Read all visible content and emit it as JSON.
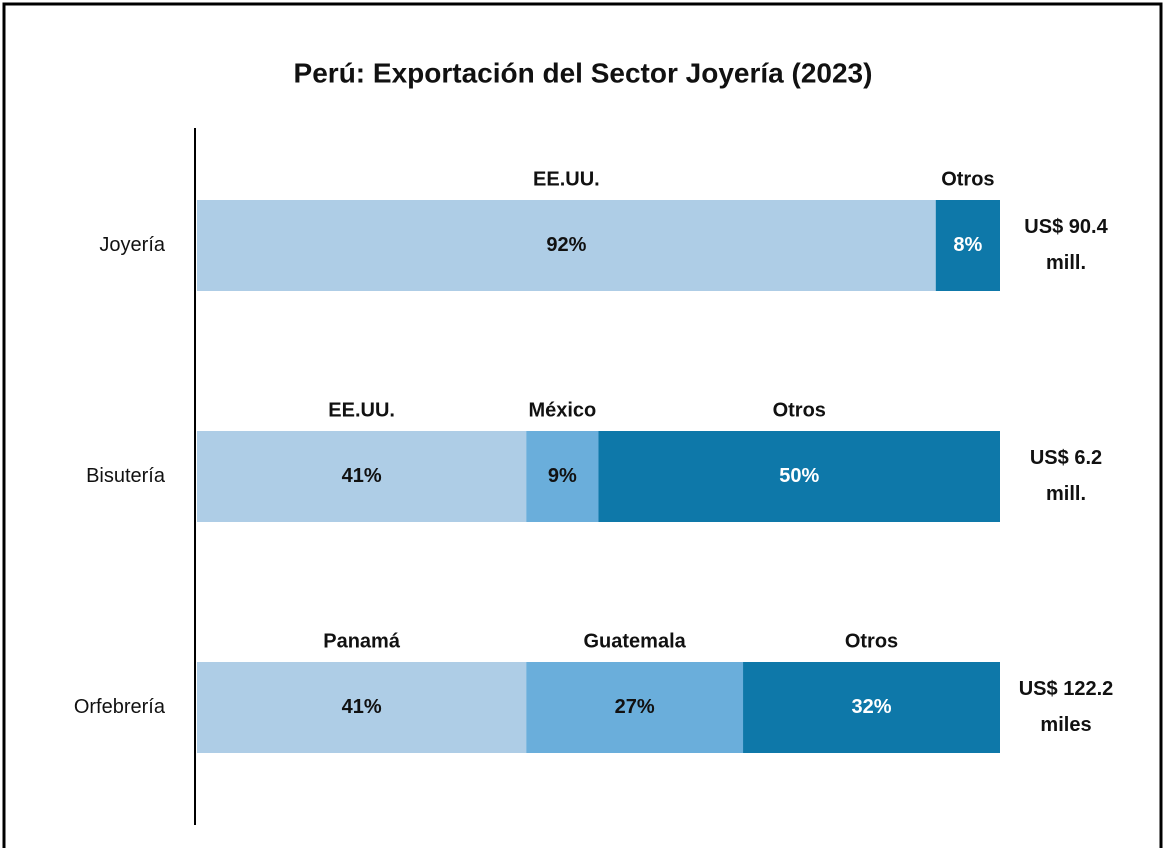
{
  "chart_data": {
    "type": "bar",
    "orientation": "horizontal",
    "stacked": true,
    "title": "Perú: Exportación del Sector Joyería (2023)",
    "categories": [
      "Joyería",
      "Bisutería",
      "Orfebrería"
    ],
    "xlim": [
      0,
      100
    ],
    "segments": [
      [
        {
          "name": "EE.UU.",
          "value": 92,
          "value_label": "92%",
          "color": "#aecde6"
        },
        {
          "name": "Otros",
          "value": 8,
          "value_label": "8%",
          "color": "#0e78a9"
        }
      ],
      [
        {
          "name": "EE.UU.",
          "value": 41,
          "value_label": "41%",
          "color": "#aecde6"
        },
        {
          "name": "México",
          "value": 9,
          "value_label": "9%",
          "color": "#6aaedb"
        },
        {
          "name": "Otros",
          "value": 50,
          "value_label": "50%",
          "color": "#0e78a9"
        }
      ],
      [
        {
          "name": "Panamá",
          "value": 41,
          "value_label": "41%",
          "color": "#aecde6"
        },
        {
          "name": "Guatemala",
          "value": 27,
          "value_label": "27%",
          "color": "#6aaedb"
        },
        {
          "name": "Otros",
          "value": 32,
          "value_label": "32%",
          "color": "#0e78a9"
        }
      ]
    ],
    "totals": [
      [
        "US$ 90.4",
        "mill."
      ],
      [
        "US$ 6.2",
        "mill."
      ],
      [
        "US$ 122.2",
        "miles"
      ]
    ]
  }
}
